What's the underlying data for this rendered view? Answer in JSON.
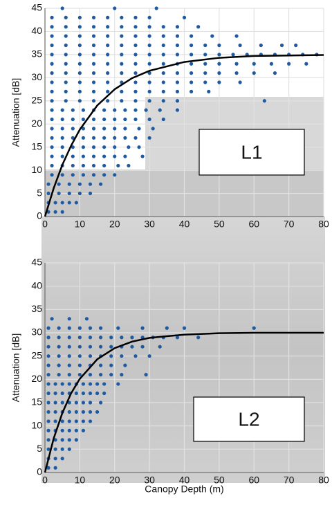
{
  "chart_data": [
    {
      "type": "scatter",
      "ylabel": "Attenuation [dB]",
      "annotation": "L1",
      "xlim": [
        0,
        80
      ],
      "ylim": [
        0,
        45
      ],
      "xticks": [
        0,
        10,
        20,
        30,
        40,
        50,
        60,
        70,
        80
      ],
      "yticks": [
        0,
        5,
        10,
        15,
        20,
        25,
        30,
        35,
        40,
        45
      ],
      "grid": true,
      "series": [
        {
          "color": "#1f5aa0",
          "x": [
            1,
            3,
            5,
            1,
            3,
            5,
            7,
            9,
            1,
            4,
            7,
            10,
            13,
            1,
            4,
            7,
            10,
            13,
            16,
            2,
            5,
            8,
            11,
            14,
            17,
            20,
            2,
            5,
            8,
            11,
            14,
            17,
            21,
            24,
            2,
            5,
            8,
            11,
            14,
            17,
            20,
            23,
            28,
            2,
            5,
            8,
            11,
            14,
            17,
            20,
            24,
            27,
            2,
            5,
            8,
            11,
            14,
            17,
            20,
            23,
            26,
            30,
            2,
            5,
            8,
            11,
            14,
            17,
            20,
            23,
            27,
            31,
            2,
            5,
            8,
            11,
            14,
            17,
            20,
            23,
            26,
            30,
            34,
            2,
            5,
            8,
            11,
            14,
            17,
            20,
            23,
            26,
            29,
            33,
            38,
            2,
            6,
            10,
            14,
            18,
            22,
            26,
            30,
            34,
            38,
            63,
            2,
            6,
            10,
            14,
            18,
            22,
            26,
            30,
            34,
            38,
            42,
            47,
            2,
            6,
            10,
            14,
            18,
            22,
            26,
            30,
            34,
            38,
            42,
            46,
            50,
            56,
            2,
            6,
            10,
            14,
            18,
            22,
            26,
            30,
            34,
            38,
            42,
            46,
            50,
            55,
            60,
            66,
            2,
            6,
            10,
            14,
            18,
            22,
            26,
            30,
            34,
            38,
            42,
            46,
            50,
            55,
            60,
            65,
            70,
            75,
            2,
            6,
            10,
            14,
            18,
            22,
            26,
            30,
            34,
            38,
            42,
            46,
            50,
            54,
            58,
            62,
            66,
            70,
            74,
            78,
            2,
            6,
            10,
            14,
            18,
            22,
            26,
            30,
            34,
            38,
            42,
            46,
            50,
            56,
            62,
            68,
            72,
            2,
            6,
            10,
            14,
            18,
            22,
            26,
            30,
            34,
            38,
            42,
            48,
            55,
            2,
            6,
            10,
            14,
            18,
            22,
            26,
            30,
            34,
            38,
            44,
            2,
            6,
            10,
            14,
            18,
            22,
            26,
            30,
            40,
            5,
            20,
            32
          ],
          "values": [
            1,
            1,
            1,
            3,
            3,
            3,
            3,
            3,
            5,
            5,
            5,
            5,
            5,
            7,
            7,
            7,
            7,
            7,
            7,
            9,
            9,
            9,
            9,
            9,
            9,
            9,
            11,
            11,
            11,
            11,
            11,
            11,
            11,
            11,
            13,
            13,
            13,
            13,
            13,
            13,
            13,
            13,
            13,
            15,
            15,
            15,
            15,
            15,
            15,
            15,
            15,
            15,
            17,
            17,
            17,
            17,
            17,
            17,
            17,
            17,
            17,
            17,
            19,
            19,
            19,
            19,
            19,
            19,
            19,
            19,
            19,
            19,
            21,
            21,
            21,
            21,
            21,
            21,
            21,
            21,
            21,
            21,
            21,
            23,
            23,
            23,
            23,
            23,
            23,
            23,
            23,
            23,
            23,
            23,
            23,
            25,
            25,
            25,
            25,
            25,
            25,
            25,
            25,
            25,
            25,
            25,
            27,
            27,
            27,
            27,
            27,
            27,
            27,
            27,
            27,
            27,
            27,
            27,
            29,
            29,
            29,
            29,
            29,
            29,
            29,
            29,
            29,
            29,
            29,
            29,
            29,
            29,
            31,
            31,
            31,
            31,
            31,
            31,
            31,
            31,
            31,
            31,
            31,
            31,
            31,
            31,
            31,
            31,
            33,
            33,
            33,
            33,
            33,
            33,
            33,
            33,
            33,
            33,
            33,
            33,
            33,
            33,
            33,
            33,
            33,
            33,
            35,
            35,
            35,
            35,
            35,
            35,
            35,
            35,
            35,
            35,
            35,
            35,
            35,
            35,
            35,
            35,
            35,
            35,
            35,
            35,
            37,
            37,
            37,
            37,
            37,
            37,
            37,
            37,
            37,
            37,
            37,
            37,
            37,
            37,
            37,
            37,
            37,
            39,
            39,
            39,
            39,
            39,
            39,
            39,
            39,
            39,
            39,
            39,
            39,
            39,
            41,
            41,
            41,
            41,
            41,
            41,
            41,
            41,
            41,
            41,
            41,
            43,
            43,
            43,
            43,
            43,
            43,
            43,
            43,
            43,
            45,
            45,
            45
          ]
        },
        {
          "type": "line",
          "color": "#000000",
          "x": [
            0,
            2.5,
            5,
            7.5,
            10,
            15,
            20,
            25,
            30,
            40,
            50,
            60,
            70,
            80
          ],
          "values": [
            0,
            6.1,
            11.2,
            15.3,
            18.8,
            24.0,
            27.5,
            29.9,
            31.5,
            33.4,
            34.3,
            34.7,
            34.8,
            34.9
          ]
        }
      ]
    },
    {
      "type": "scatter",
      "ylabel": "Attenuation [dB]",
      "xlabel": "Canopy Depth (m)",
      "annotation": "L2",
      "xlim": [
        0,
        80
      ],
      "ylim": [
        0,
        45
      ],
      "xticks": [
        0,
        10,
        20,
        30,
        40,
        50,
        60,
        70,
        80
      ],
      "yticks": [
        0,
        5,
        10,
        15,
        20,
        25,
        30,
        35,
        40,
        45
      ],
      "grid": true,
      "series": [
        {
          "color": "#1f5aa0",
          "x": [
            1,
            3,
            1,
            3,
            5,
            1,
            3,
            5,
            7,
            1,
            3,
            5,
            7,
            9,
            1,
            3,
            5,
            7,
            9,
            11,
            1,
            3,
            5,
            7,
            9,
            11,
            13,
            1,
            3,
            5,
            7,
            9,
            11,
            13,
            15,
            1,
            3,
            5,
            7,
            9,
            11,
            13,
            16,
            1,
            3,
            5,
            7,
            9,
            11,
            13,
            15,
            17,
            1,
            3,
            5,
            7,
            9,
            11,
            13,
            15,
            17,
            21,
            1,
            4,
            7,
            10,
            13,
            16,
            19,
            22,
            29,
            1,
            4,
            7,
            10,
            13,
            16,
            19,
            23,
            1,
            4,
            7,
            10,
            13,
            16,
            19,
            22,
            26,
            30,
            1,
            4,
            7,
            10,
            13,
            16,
            19,
            22,
            25,
            28,
            33,
            1,
            4,
            7,
            10,
            13,
            16,
            19,
            22,
            25,
            28,
            31,
            34,
            38,
            44,
            1,
            4,
            7,
            10,
            13,
            16,
            21,
            28,
            35,
            40,
            60,
            2,
            7,
            12
          ],
          "values": [
            1,
            1,
            3,
            3,
            3,
            5,
            5,
            5,
            5,
            7,
            7,
            7,
            7,
            7,
            9,
            9,
            9,
            9,
            9,
            9,
            11,
            11,
            11,
            11,
            11,
            11,
            11,
            13,
            13,
            13,
            13,
            13,
            13,
            13,
            13,
            15,
            15,
            15,
            15,
            15,
            15,
            15,
            15,
            17,
            17,
            17,
            17,
            17,
            17,
            17,
            17,
            17,
            19,
            19,
            19,
            19,
            19,
            19,
            19,
            19,
            19,
            19,
            21,
            21,
            21,
            21,
            21,
            21,
            21,
            21,
            21,
            23,
            23,
            23,
            23,
            23,
            23,
            23,
            23,
            25,
            25,
            25,
            25,
            25,
            25,
            25,
            25,
            25,
            25,
            27,
            27,
            27,
            27,
            27,
            27,
            27,
            27,
            27,
            27,
            27,
            29,
            29,
            29,
            29,
            29,
            29,
            29,
            29,
            29,
            29,
            29,
            29,
            29,
            29,
            31,
            31,
            31,
            31,
            31,
            31,
            31,
            31,
            31,
            31,
            31,
            33,
            33,
            33
          ]
        },
        {
          "type": "line",
          "color": "#000000",
          "x": [
            0,
            2.5,
            5,
            7.5,
            10,
            15,
            20,
            25,
            30,
            40,
            50,
            60,
            70,
            80
          ],
          "values": [
            0,
            7.3,
            12.8,
            17.0,
            20.1,
            24.3,
            26.7,
            28.1,
            28.9,
            29.6,
            29.9,
            30.0,
            30.0,
            30.0
          ]
        }
      ]
    }
  ]
}
